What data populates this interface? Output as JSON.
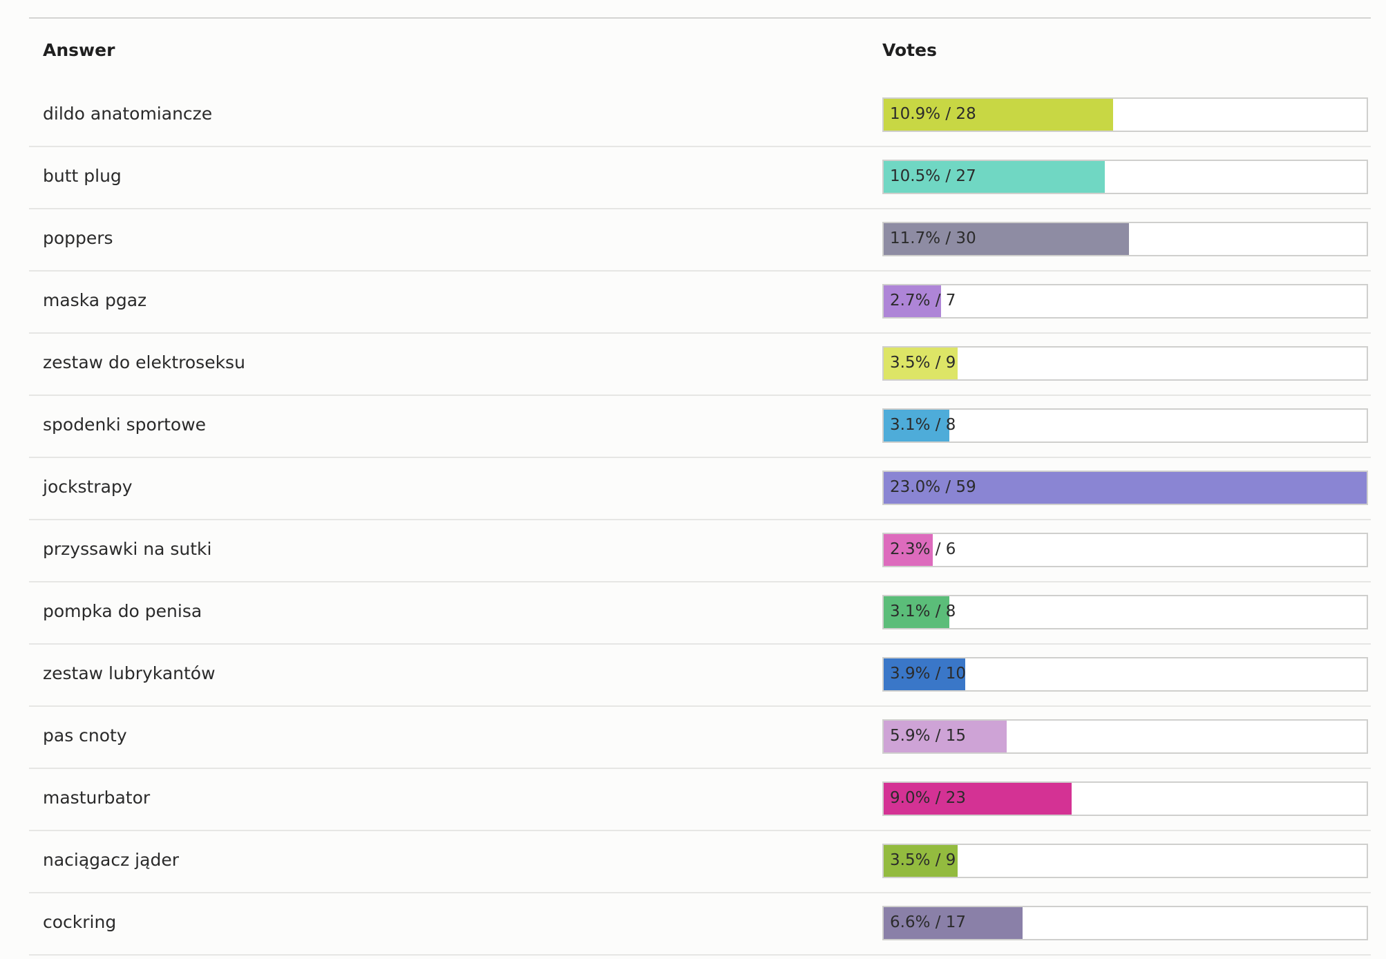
{
  "poll": {
    "answer_header": "Answer",
    "votes_header": "Votes",
    "max_votes": 59,
    "results": [
      {
        "answer": "dildo anatomiancze",
        "label": "10.9% / 28",
        "votes": 28,
        "color": "#c8d744"
      },
      {
        "answer": "butt plug",
        "label": "10.5% / 27",
        "votes": 27,
        "color": "#70d7c3"
      },
      {
        "answer": "poppers",
        "label": "11.7% / 30",
        "votes": 30,
        "color": "#8e8ca3"
      },
      {
        "answer": "maska pgaz",
        "label": "2.7% / 7",
        "votes": 7,
        "color": "#ae85d7"
      },
      {
        "answer": "zestaw do elektroseksu",
        "label": "3.5% / 9",
        "votes": 9,
        "color": "#dde566"
      },
      {
        "answer": "spodenki sportowe",
        "label": "3.1% / 8",
        "votes": 8,
        "color": "#4eacd9"
      },
      {
        "answer": "jockstrapy",
        "label": "23.0% / 59",
        "votes": 59,
        "color": "#8a85d3"
      },
      {
        "answer": "przyssawki na sutki",
        "label": "2.3% / 6",
        "votes": 6,
        "color": "#dd6bbd"
      },
      {
        "answer": "pompka do penisa",
        "label": "3.1% / 8",
        "votes": 8,
        "color": "#5bbd79"
      },
      {
        "answer": "zestaw lubrykantów",
        "label": "3.9% / 10",
        "votes": 10,
        "color": "#3a77c8"
      },
      {
        "answer": "pas cnoty",
        "label": "5.9% / 15",
        "votes": 15,
        "color": "#cea3d6"
      },
      {
        "answer": "masturbator",
        "label": "9.0% / 23",
        "votes": 23,
        "color": "#d43294"
      },
      {
        "answer": "naciągacz jąder",
        "label": "3.5% / 9",
        "votes": 9,
        "color": "#93bb3f"
      },
      {
        "answer": "cockring",
        "label": "6.6% / 17",
        "votes": 17,
        "color": "#8a80a8"
      }
    ]
  }
}
